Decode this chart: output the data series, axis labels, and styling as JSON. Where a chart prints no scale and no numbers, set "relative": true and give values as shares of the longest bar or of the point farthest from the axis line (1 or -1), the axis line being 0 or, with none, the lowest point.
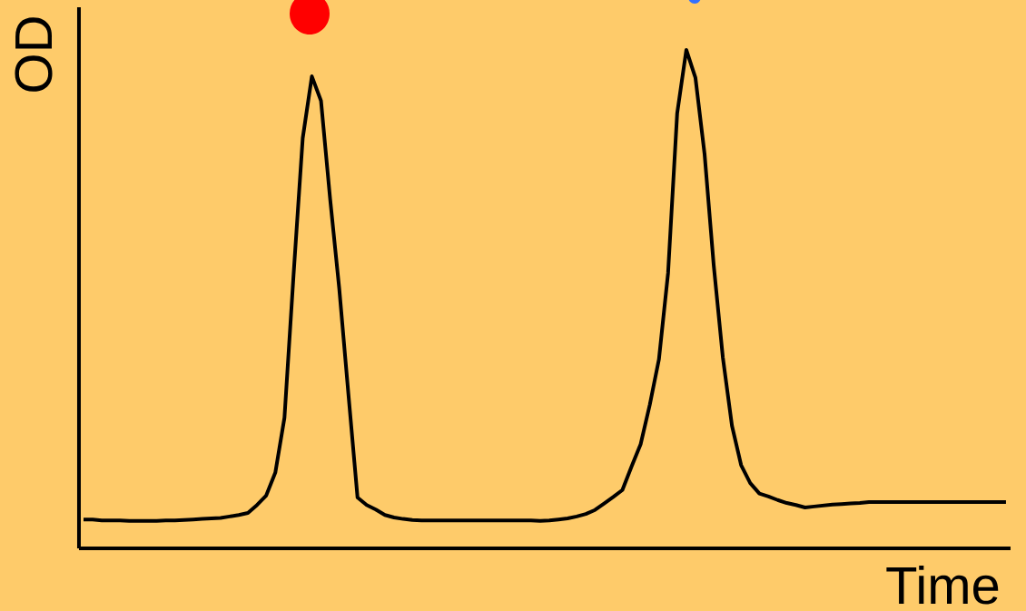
{
  "chart_data": {
    "type": "line",
    "xlabel": "Time",
    "ylabel": "OD",
    "relative": true,
    "tick_labels": false,
    "color": "#000000",
    "categories": [
      null,
      null,
      null,
      null,
      null,
      null,
      null,
      null,
      null,
      null,
      null,
      null,
      null,
      null,
      null,
      null,
      null,
      null,
      null,
      null,
      null,
      null,
      null,
      null,
      null,
      null,
      null,
      null,
      null,
      null,
      null,
      null,
      null,
      null,
      null,
      null,
      null,
      null,
      null,
      null,
      null,
      null,
      null,
      null,
      null,
      null,
      null,
      null,
      null,
      null,
      null,
      null,
      null,
      null,
      null,
      null,
      null,
      null,
      null,
      null,
      null,
      null,
      null,
      null,
      null,
      null,
      null,
      null,
      null,
      null,
      null,
      null,
      null,
      null,
      null,
      null,
      null,
      null,
      null,
      null,
      null,
      null,
      null,
      null,
      null,
      null,
      null,
      null,
      null,
      null,
      null,
      null,
      null,
      null,
      null,
      null,
      null,
      null,
      null,
      null,
      null,
      null
    ],
    "values": [
      0.058,
      0.058,
      0.056,
      0.056,
      0.056,
      0.055,
      0.055,
      0.055,
      0.055,
      0.056,
      0.056,
      0.057,
      0.058,
      0.059,
      0.06,
      0.061,
      0.064,
      0.067,
      0.071,
      0.087,
      0.106,
      0.152,
      0.262,
      0.55,
      0.823,
      0.947,
      0.898,
      0.701,
      0.521,
      0.31,
      0.102,
      0.087,
      0.078,
      0.067,
      0.062,
      0.059,
      0.057,
      0.056,
      0.056,
      0.056,
      0.056,
      0.056,
      0.056,
      0.056,
      0.056,
      0.056,
      0.056,
      0.056,
      0.056,
      0.056,
      0.055,
      0.056,
      0.058,
      0.06,
      0.064,
      0.069,
      0.077,
      0.09,
      0.103,
      0.117,
      0.164,
      0.209,
      0.288,
      0.379,
      0.552,
      0.873,
      1,
      0.944,
      0.791,
      0.568,
      0.383,
      0.246,
      0.167,
      0.131,
      0.11,
      0.104,
      0.097,
      0.091,
      0.087,
      0.082,
      0.084,
      0.086,
      0.088,
      0.089,
      0.09,
      0.091,
      0.093,
      0.093,
      0.093,
      0.093,
      0.093,
      0.093,
      0.093,
      0.093,
      0.093,
      0.093,
      0.093,
      0.093,
      0.093,
      0.093,
      0.093,
      0.093
    ]
  }
}
